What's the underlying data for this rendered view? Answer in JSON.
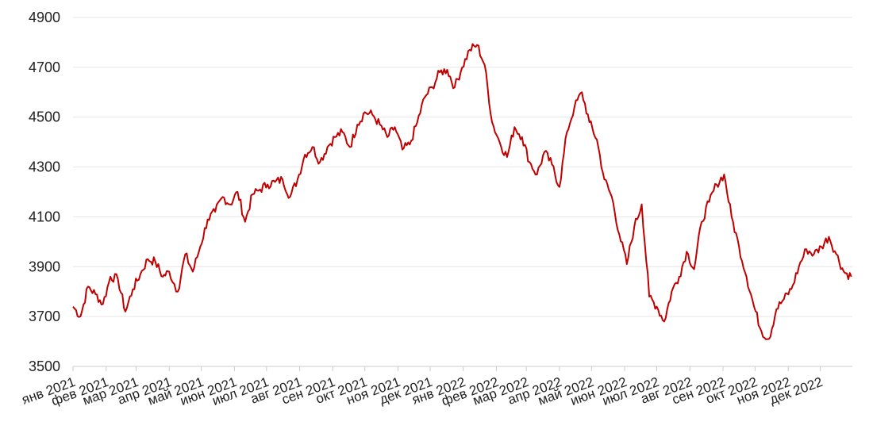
{
  "chart_data": {
    "type": "line",
    "title": "",
    "xlabel": "",
    "ylabel": "",
    "ylim": [
      3500,
      4900
    ],
    "yticks": [
      3500,
      3700,
      3900,
      4100,
      4300,
      4500,
      4700,
      4900
    ],
    "x_tick_labels": [
      "янв 2021",
      "фев 2021",
      "мар 2021",
      "апр 2021",
      "май 2021",
      "июн 2021",
      "июл 2021",
      "авг 2021",
      "сен 2021",
      "окт 2021",
      "ноя 2021",
      "дек 2021",
      "янв 2022",
      "фев 2022",
      "мар 2022",
      "апр 2022",
      "май 2022",
      "июн 2022",
      "июл 2022",
      "авг 2022",
      "сен 2022",
      "окт 2022",
      "ноя 2022",
      "дек 2022"
    ],
    "grid": true,
    "line_color": "#c00000",
    "series": [
      {
        "x": [
          "2021-01-01",
          "2021-01-08",
          "2021-01-15",
          "2021-01-22",
          "2021-01-29",
          "2021-02-05",
          "2021-02-12",
          "2021-02-19",
          "2021-02-26",
          "2021-03-05",
          "2021-03-12",
          "2021-03-19",
          "2021-03-26",
          "2021-04-01",
          "2021-04-09",
          "2021-04-16",
          "2021-04-23",
          "2021-04-30",
          "2021-05-07",
          "2021-05-14",
          "2021-05-21",
          "2021-05-28",
          "2021-06-04",
          "2021-06-11",
          "2021-06-18",
          "2021-06-25",
          "2021-07-02",
          "2021-07-09",
          "2021-07-16",
          "2021-07-23",
          "2021-07-30",
          "2021-08-06",
          "2021-08-13",
          "2021-08-20",
          "2021-08-27",
          "2021-09-03",
          "2021-09-10",
          "2021-09-17",
          "2021-09-24",
          "2021-10-01",
          "2021-10-08",
          "2021-10-15",
          "2021-10-22",
          "2021-10-29",
          "2021-11-05",
          "2021-11-12",
          "2021-11-19",
          "2021-11-26",
          "2021-12-03",
          "2021-12-10",
          "2021-12-17",
          "2021-12-24",
          "2021-12-31",
          "2022-01-07",
          "2022-01-14",
          "2022-01-21",
          "2022-01-28",
          "2022-02-04",
          "2022-02-11",
          "2022-02-18",
          "2022-02-25",
          "2022-03-04",
          "2022-03-11",
          "2022-03-18",
          "2022-03-25",
          "2022-04-01",
          "2022-04-08",
          "2022-04-15",
          "2022-04-22",
          "2022-04-29",
          "2022-05-06",
          "2022-05-13",
          "2022-05-20",
          "2022-05-27",
          "2022-06-03",
          "2022-06-10",
          "2022-06-17",
          "2022-06-24",
          "2022-07-01",
          "2022-07-08",
          "2022-07-15",
          "2022-07-22",
          "2022-07-29",
          "2022-08-05",
          "2022-08-12",
          "2022-08-19",
          "2022-08-26",
          "2022-09-02",
          "2022-09-09",
          "2022-09-16",
          "2022-09-23",
          "2022-09-30",
          "2022-10-07",
          "2022-10-14",
          "2022-10-21",
          "2022-10-28",
          "2022-11-04",
          "2022-11-11",
          "2022-11-18",
          "2022-11-25",
          "2022-12-02",
          "2022-12-09",
          "2022-12-16",
          "2022-12-23",
          "2022-12-30"
        ],
        "values": [
          3740,
          3700,
          3820,
          3790,
          3750,
          3860,
          3850,
          3720,
          3810,
          3870,
          3930,
          3920,
          3860,
          3880,
          3800,
          3950,
          3880,
          3980,
          4090,
          4120,
          4180,
          4150,
          4200,
          4080,
          4190,
          4210,
          4230,
          4240,
          4250,
          4180,
          4250,
          4350,
          4380,
          4320,
          4380,
          4420,
          4440,
          4380,
          4470,
          4520,
          4510,
          4470,
          4420,
          4460,
          4370,
          4390,
          4480,
          4580,
          4620,
          4680,
          4690,
          4620,
          4700,
          4770,
          4790,
          4710,
          4480,
          4400,
          4340,
          4460,
          4420,
          4320,
          4270,
          4360,
          4310,
          4220,
          4440,
          4540,
          4600,
          4480,
          4410,
          4250,
          4180,
          4030,
          3910,
          4060,
          4150,
          3780,
          3740,
          3680,
          3800,
          3860,
          3960,
          3890,
          4080,
          4160,
          4230,
          4270,
          4100,
          3980,
          3860,
          3740,
          3640,
          3610,
          3730,
          3770,
          3810,
          3900,
          3970,
          3950,
          3980,
          4020,
          3950,
          3880,
          3860
        ]
      }
    ]
  }
}
